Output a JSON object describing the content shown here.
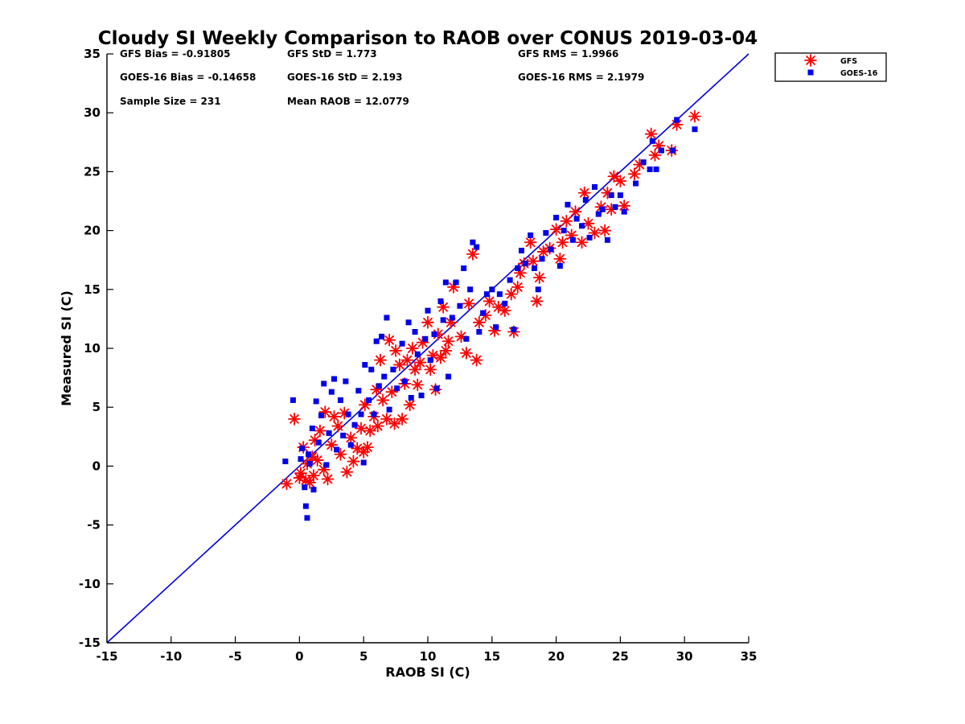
{
  "chart_data": {
    "type": "scatter",
    "title": "Cloudy SI Weekly Comparison to RAOB over CONUS 2019-03-04",
    "xlabel": "RAOB SI (C)",
    "ylabel": "Measured SI (C)",
    "xlim": [
      -15,
      35
    ],
    "ylim": [
      -15,
      35
    ],
    "xticks": [
      "-15",
      "-10",
      "-5",
      "0",
      "5",
      "10",
      "15",
      "20",
      "25",
      "30",
      "35"
    ],
    "yticks": [
      "-15",
      "-10",
      "-5",
      "0",
      "5",
      "10",
      "15",
      "20",
      "25",
      "30",
      "35"
    ],
    "grid": false,
    "legend_position": "top-right outside",
    "reference_line": {
      "type": "one-to-one",
      "color": "#0000dd"
    },
    "annotations": [
      "GFS Bias = -0.91805",
      "GFS StD = 1.773",
      "GFS RMS = 1.9966",
      "GOES-16 Bias = -0.14658",
      "GOES-16 StD = 2.193",
      "GOES-16 RMS = 2.1979",
      "Sample Size = 231",
      "Mean RAOB = 12.0779"
    ],
    "series": [
      {
        "name": "GFS",
        "color": "#ff0000",
        "marker": "asterisk",
        "points": [
          [
            -1.0,
            -1.5
          ],
          [
            -0.4,
            4.0
          ],
          [
            0.0,
            -1.0
          ],
          [
            0.1,
            -0.6
          ],
          [
            0.3,
            1.6
          ],
          [
            0.5,
            -1.2
          ],
          [
            0.6,
            0.2
          ],
          [
            0.8,
            -1.4
          ],
          [
            1.0,
            0.8
          ],
          [
            1.1,
            -0.8
          ],
          [
            1.2,
            2.2
          ],
          [
            1.4,
            0.5
          ],
          [
            1.6,
            3.0
          ],
          [
            1.9,
            -0.3
          ],
          [
            2.0,
            4.6
          ],
          [
            2.2,
            -1.1
          ],
          [
            2.5,
            1.8
          ],
          [
            2.7,
            4.2
          ],
          [
            3.0,
            3.4
          ],
          [
            3.2,
            1.0
          ],
          [
            3.5,
            4.5
          ],
          [
            3.7,
            -0.5
          ],
          [
            4.0,
            2.4
          ],
          [
            4.2,
            0.4
          ],
          [
            4.5,
            1.5
          ],
          [
            4.8,
            3.2
          ],
          [
            5.0,
            1.2
          ],
          [
            5.1,
            5.2
          ],
          [
            5.3,
            1.6
          ],
          [
            5.5,
            3.0
          ],
          [
            5.8,
            4.2
          ],
          [
            6.0,
            6.5
          ],
          [
            6.1,
            3.4
          ],
          [
            6.3,
            9.0
          ],
          [
            6.5,
            5.6
          ],
          [
            6.8,
            4.0
          ],
          [
            7.0,
            10.7
          ],
          [
            7.2,
            6.3
          ],
          [
            7.4,
            3.6
          ],
          [
            7.5,
            9.8
          ],
          [
            7.8,
            8.6
          ],
          [
            8.0,
            4.0
          ],
          [
            8.2,
            7.0
          ],
          [
            8.4,
            9.0
          ],
          [
            8.6,
            5.2
          ],
          [
            8.8,
            10.0
          ],
          [
            9.0,
            8.2
          ],
          [
            9.2,
            6.9
          ],
          [
            9.4,
            8.8
          ],
          [
            9.6,
            10.5
          ],
          [
            10.0,
            12.2
          ],
          [
            10.2,
            8.2
          ],
          [
            10.4,
            9.4
          ],
          [
            10.6,
            6.5
          ],
          [
            10.8,
            11.2
          ],
          [
            11.0,
            9.2
          ],
          [
            11.2,
            13.5
          ],
          [
            11.4,
            9.8
          ],
          [
            11.6,
            10.6
          ],
          [
            11.8,
            12.2
          ],
          [
            12.0,
            15.2
          ],
          [
            12.6,
            11.0
          ],
          [
            13.0,
            9.6
          ],
          [
            13.2,
            13.8
          ],
          [
            13.5,
            18.0
          ],
          [
            13.8,
            9.0
          ],
          [
            14.0,
            12.2
          ],
          [
            14.5,
            12.8
          ],
          [
            14.8,
            14.0
          ],
          [
            15.2,
            11.5
          ],
          [
            15.5,
            13.5
          ],
          [
            16.0,
            13.2
          ],
          [
            16.5,
            14.6
          ],
          [
            16.7,
            11.4
          ],
          [
            17.0,
            15.2
          ],
          [
            17.2,
            16.4
          ],
          [
            17.5,
            17.2
          ],
          [
            18.0,
            19.0
          ],
          [
            18.2,
            17.4
          ],
          [
            18.5,
            14.0
          ],
          [
            18.7,
            16.0
          ],
          [
            19.0,
            18.2
          ],
          [
            19.5,
            18.5
          ],
          [
            20.0,
            20.1
          ],
          [
            20.3,
            17.6
          ],
          [
            20.5,
            19.0
          ],
          [
            20.8,
            20.8
          ],
          [
            21.2,
            19.6
          ],
          [
            21.5,
            21.6
          ],
          [
            22.0,
            19.0
          ],
          [
            22.2,
            23.2
          ],
          [
            22.5,
            20.6
          ],
          [
            23.0,
            19.8
          ],
          [
            23.5,
            22.0
          ],
          [
            23.8,
            20.0
          ],
          [
            24.0,
            23.2
          ],
          [
            24.3,
            21.8
          ],
          [
            24.5,
            24.6
          ],
          [
            25.0,
            24.2
          ],
          [
            25.3,
            22.1
          ],
          [
            26.1,
            24.8
          ],
          [
            26.5,
            25.6
          ],
          [
            27.4,
            28.2
          ],
          [
            27.7,
            26.4
          ],
          [
            28.0,
            27.2
          ],
          [
            29.0,
            26.8
          ],
          [
            29.4,
            29.0
          ],
          [
            30.8,
            29.7
          ]
        ]
      },
      {
        "name": "GOES-16",
        "color": "#0000ee",
        "marker": "square",
        "points": [
          [
            -1.1,
            0.4
          ],
          [
            -0.5,
            5.6
          ],
          [
            0.1,
            0.6
          ],
          [
            0.2,
            1.5
          ],
          [
            0.4,
            -1.8
          ],
          [
            0.5,
            -3.4
          ],
          [
            0.6,
            -4.4
          ],
          [
            0.7,
            1.0
          ],
          [
            0.8,
            0.2
          ],
          [
            1.0,
            3.2
          ],
          [
            1.1,
            -2.0
          ],
          [
            1.3,
            5.5
          ],
          [
            1.5,
            2.0
          ],
          [
            1.7,
            4.3
          ],
          [
            1.9,
            7.0
          ],
          [
            2.1,
            0.1
          ],
          [
            2.3,
            2.8
          ],
          [
            2.5,
            6.3
          ],
          [
            2.7,
            7.4
          ],
          [
            2.9,
            1.4
          ],
          [
            3.2,
            5.6
          ],
          [
            3.4,
            2.6
          ],
          [
            3.6,
            7.2
          ],
          [
            3.8,
            4.4
          ],
          [
            4.0,
            1.8
          ],
          [
            4.3,
            3.5
          ],
          [
            4.6,
            6.4
          ],
          [
            4.8,
            4.4
          ],
          [
            5.0,
            0.3
          ],
          [
            5.1,
            8.6
          ],
          [
            5.4,
            5.6
          ],
          [
            5.6,
            8.2
          ],
          [
            5.8,
            4.4
          ],
          [
            6.0,
            10.6
          ],
          [
            6.2,
            6.8
          ],
          [
            6.4,
            11.0
          ],
          [
            6.6,
            7.6
          ],
          [
            6.8,
            12.6
          ],
          [
            7.0,
            4.8
          ],
          [
            7.3,
            8.2
          ],
          [
            7.6,
            6.6
          ],
          [
            8.0,
            10.4
          ],
          [
            8.2,
            7.2
          ],
          [
            8.5,
            12.2
          ],
          [
            8.7,
            5.8
          ],
          [
            9.0,
            11.4
          ],
          [
            9.2,
            9.5
          ],
          [
            9.5,
            6.0
          ],
          [
            9.8,
            10.8
          ],
          [
            10.0,
            13.2
          ],
          [
            10.2,
            9.0
          ],
          [
            10.5,
            11.2
          ],
          [
            10.7,
            6.6
          ],
          [
            11.0,
            14.0
          ],
          [
            11.2,
            12.4
          ],
          [
            11.4,
            15.6
          ],
          [
            11.6,
            7.6
          ],
          [
            11.9,
            12.6
          ],
          [
            12.2,
            15.6
          ],
          [
            12.5,
            13.6
          ],
          [
            12.8,
            16.8
          ],
          [
            13.0,
            10.8
          ],
          [
            13.3,
            15.0
          ],
          [
            13.5,
            19.0
          ],
          [
            13.8,
            18.6
          ],
          [
            14.0,
            11.4
          ],
          [
            14.3,
            13.0
          ],
          [
            14.6,
            14.6
          ],
          [
            15.0,
            15.0
          ],
          [
            15.3,
            11.8
          ],
          [
            15.6,
            14.6
          ],
          [
            16.0,
            13.8
          ],
          [
            16.4,
            15.8
          ],
          [
            16.7,
            11.6
          ],
          [
            17.0,
            16.8
          ],
          [
            17.3,
            18.3
          ],
          [
            17.6,
            17.2
          ],
          [
            18.0,
            19.6
          ],
          [
            18.3,
            16.8
          ],
          [
            18.6,
            15.0
          ],
          [
            18.9,
            17.6
          ],
          [
            19.2,
            19.8
          ],
          [
            19.6,
            18.4
          ],
          [
            20.0,
            21.1
          ],
          [
            20.3,
            17.0
          ],
          [
            20.6,
            20.0
          ],
          [
            20.9,
            22.2
          ],
          [
            21.3,
            19.2
          ],
          [
            21.6,
            21.0
          ],
          [
            22.0,
            20.4
          ],
          [
            22.3,
            22.6
          ],
          [
            22.6,
            19.4
          ],
          [
            23.0,
            23.7
          ],
          [
            23.3,
            21.4
          ],
          [
            23.6,
            21.8
          ],
          [
            24.0,
            19.2
          ],
          [
            24.3,
            23.0
          ],
          [
            24.6,
            22.0
          ],
          [
            25.0,
            23.0
          ],
          [
            25.3,
            21.6
          ],
          [
            26.2,
            24.0
          ],
          [
            26.8,
            25.8
          ],
          [
            27.3,
            25.2
          ],
          [
            27.5,
            27.6
          ],
          [
            27.8,
            25.2
          ],
          [
            28.2,
            26.8
          ],
          [
            29.1,
            26.8
          ],
          [
            29.4,
            29.4
          ],
          [
            30.8,
            28.6
          ]
        ]
      }
    ]
  }
}
